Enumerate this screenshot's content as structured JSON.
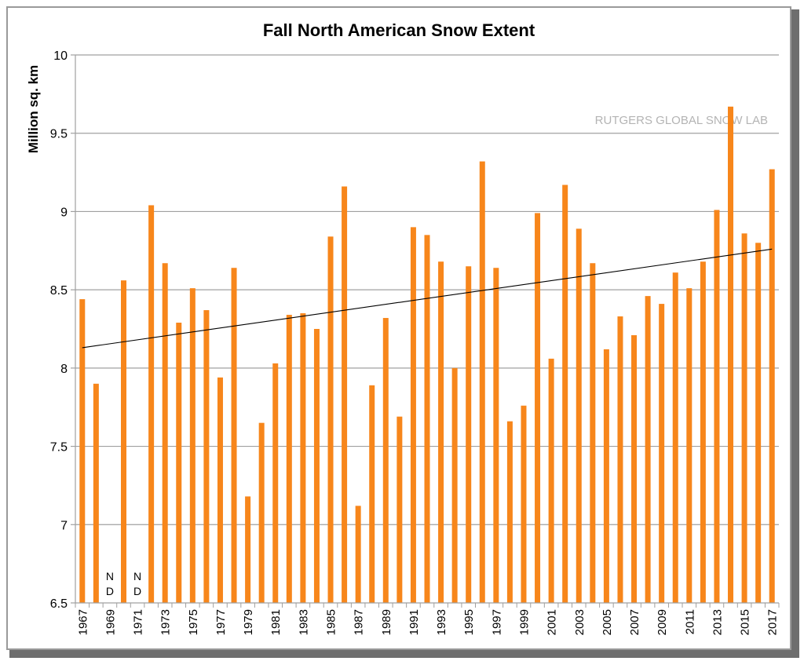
{
  "chart_data": {
    "type": "bar",
    "title": "Fall North American Snow Extent",
    "xlabel": "",
    "ylabel": "Million sq. km",
    "ylim": [
      6.5,
      10
    ],
    "yticks": [
      "6.5",
      "7",
      "7.5",
      "8",
      "8.5",
      "9",
      "9.5",
      "10"
    ],
    "ytick_values": [
      6.5,
      7,
      7.5,
      8,
      8.5,
      9,
      9.5,
      10
    ],
    "grid": true,
    "annotation": "RUTGERS GLOBAL SNOW LAB",
    "no_data_label": [
      "N",
      "D"
    ],
    "bar_color": "#f7861b",
    "categories": [
      "1967",
      "1968",
      "1969",
      "1970",
      "1971",
      "1972",
      "1973",
      "1974",
      "1975",
      "1976",
      "1977",
      "1978",
      "1979",
      "1980",
      "1981",
      "1982",
      "1983",
      "1984",
      "1985",
      "1986",
      "1987",
      "1988",
      "1989",
      "1990",
      "1991",
      "1992",
      "1993",
      "1994",
      "1995",
      "1996",
      "1997",
      "1998",
      "1999",
      "2000",
      "2001",
      "2002",
      "2003",
      "2004",
      "2005",
      "2006",
      "2007",
      "2008",
      "2009",
      "2010",
      "2011",
      "2012",
      "2013",
      "2014",
      "2015",
      "2016",
      "2017"
    ],
    "series": [
      {
        "name": "Fall North American Snow Extent",
        "values": [
          8.44,
          7.9,
          null,
          8.56,
          null,
          9.04,
          8.67,
          8.29,
          8.51,
          8.37,
          7.94,
          8.64,
          7.18,
          7.65,
          8.03,
          8.34,
          8.35,
          8.25,
          8.84,
          9.16,
          7.12,
          7.89,
          8.32,
          7.69,
          8.9,
          8.85,
          8.68,
          8.0,
          8.65,
          9.32,
          8.64,
          7.66,
          7.76,
          8.99,
          8.06,
          9.17,
          8.89,
          8.67,
          8.12,
          8.33,
          8.21,
          8.46,
          8.41,
          8.61,
          8.51,
          8.68,
          9.01,
          9.67,
          8.86,
          8.8,
          9.27
        ]
      }
    ],
    "trendline": {
      "type": "linear",
      "start": {
        "x": "1967",
        "y": 8.13
      },
      "end": {
        "x": "2017",
        "y": 8.76
      },
      "color": "#000000"
    },
    "xtick_labels_every": 2
  }
}
